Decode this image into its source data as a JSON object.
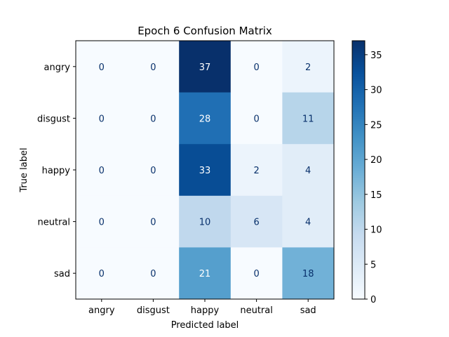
{
  "chart_data": {
    "type": "heatmap",
    "title": "Epoch 6 Confusion Matrix",
    "xlabel": "Predicted label",
    "ylabel": "True label",
    "x_categories": [
      "angry",
      "disgust",
      "happy",
      "neutral",
      "sad"
    ],
    "y_categories": [
      "angry",
      "disgust",
      "happy",
      "neutral",
      "sad"
    ],
    "values": [
      [
        0,
        0,
        37,
        0,
        2
      ],
      [
        0,
        0,
        28,
        0,
        11
      ],
      [
        0,
        0,
        33,
        2,
        4
      ],
      [
        0,
        0,
        10,
        6,
        4
      ],
      [
        0,
        0,
        21,
        0,
        18
      ]
    ],
    "colormap": "Blues",
    "colorbar": {
      "min": 0,
      "max": 37,
      "ticks": [
        0,
        5,
        10,
        15,
        20,
        25,
        30,
        35
      ]
    },
    "grid": false
  }
}
